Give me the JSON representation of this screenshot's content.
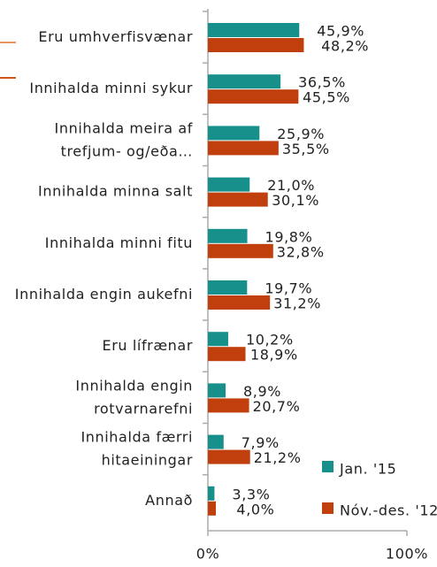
{
  "chart_data": {
    "type": "bar",
    "orientation": "horizontal",
    "categories": [
      "Eru umhverfisvænar",
      "Innihalda minni sykur",
      "Innihalda meira af\ntrefjum- og/eða…",
      "Innihalda minna salt",
      "Innihalda minni fitu",
      "Innihalda engin aukefni",
      "Eru lífrænar",
      "Innihalda engin\nrotvarnarefni",
      "Innihalda færri\nhitaeiningar",
      "Annað"
    ],
    "series": [
      {
        "name": "Jan. '15",
        "color": "#17908c",
        "values": [
          45.9,
          36.5,
          25.9,
          21.0,
          19.8,
          19.7,
          10.2,
          8.9,
          7.9,
          3.3
        ],
        "value_labels": [
          "45,9%",
          "36,5%",
          "25,9%",
          "21,0%",
          "19,8%",
          "19,7%",
          "10,2%",
          "8,9%",
          "7,9%",
          "3,3%"
        ]
      },
      {
        "name": "Nóv.-des. '12",
        "color": "#c03f0c",
        "values": [
          48.2,
          45.5,
          35.5,
          30.1,
          32.8,
          31.2,
          18.9,
          20.7,
          21.2,
          4.0
        ],
        "value_labels": [
          "48,2%",
          "45,5%",
          "35,5%",
          "30,1%",
          "32,8%",
          "31,2%",
          "18,9%",
          "20,7%",
          "21,2%",
          "4,0%"
        ]
      }
    ],
    "xlim": [
      0,
      100
    ],
    "xticks": [
      {
        "value": 0,
        "label": "0%"
      },
      {
        "value": 100,
        "label": "100%"
      }
    ],
    "legend": "lower right"
  }
}
